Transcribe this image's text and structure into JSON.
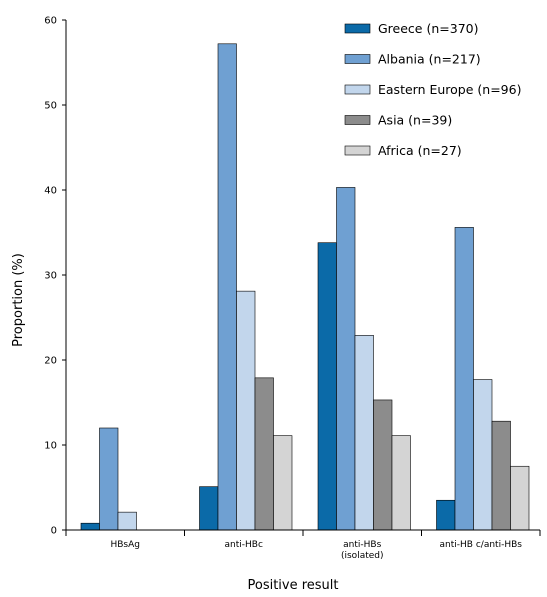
{
  "chart_data": {
    "type": "bar",
    "title": "",
    "xlabel": "Positive result",
    "ylabel": "Proportion (%)",
    "ylim": [
      0,
      60
    ],
    "yticks": [
      0,
      10,
      20,
      30,
      40,
      50,
      60
    ],
    "grid": false,
    "legend_position": "top-right",
    "categories": [
      [
        "HBsAg"
      ],
      [
        "anti-HBc"
      ],
      [
        "anti-HBs",
        "(isolated)"
      ],
      [
        "anti-HB c/anti-HBs"
      ]
    ],
    "series": [
      {
        "name": "Greece (n=370)",
        "color": "#0b6aa8",
        "values": [
          0.8,
          5.1,
          33.8,
          3.5
        ]
      },
      {
        "name": "Albania (n=217)",
        "color": "#6fa0d2",
        "values": [
          12.0,
          57.2,
          40.3,
          35.6
        ]
      },
      {
        "name": "Eastern Europe (n=96)",
        "color": "#c2d6ec",
        "values": [
          2.1,
          28.1,
          22.9,
          17.7
        ]
      },
      {
        "name": "Asia (n=39)",
        "color": "#8c8c8c",
        "values": [
          0,
          17.9,
          15.3,
          12.8
        ]
      },
      {
        "name": "Africa (n=27)",
        "color": "#d4d4d4",
        "values": [
          0,
          11.1,
          11.1,
          7.5
        ]
      }
    ]
  }
}
